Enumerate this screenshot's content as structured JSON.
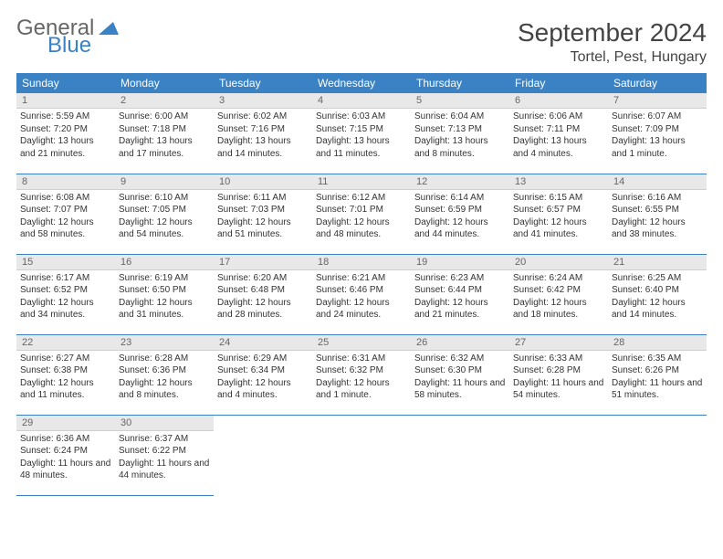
{
  "brand": {
    "line1": "General",
    "line2": "Blue"
  },
  "title": "September 2024",
  "location": "Tortel, Pest, Hungary",
  "colors": {
    "header_bg": "#3b82c4",
    "header_text": "#ffffff",
    "daynum_bg": "#e8e8e8"
  },
  "day_headers": [
    "Sunday",
    "Monday",
    "Tuesday",
    "Wednesday",
    "Thursday",
    "Friday",
    "Saturday"
  ],
  "weeks": [
    [
      {
        "n": "1",
        "sr": "Sunrise: 5:59 AM",
        "ss": "Sunset: 7:20 PM",
        "dl": "Daylight: 13 hours and 21 minutes."
      },
      {
        "n": "2",
        "sr": "Sunrise: 6:00 AM",
        "ss": "Sunset: 7:18 PM",
        "dl": "Daylight: 13 hours and 17 minutes."
      },
      {
        "n": "3",
        "sr": "Sunrise: 6:02 AM",
        "ss": "Sunset: 7:16 PM",
        "dl": "Daylight: 13 hours and 14 minutes."
      },
      {
        "n": "4",
        "sr": "Sunrise: 6:03 AM",
        "ss": "Sunset: 7:15 PM",
        "dl": "Daylight: 13 hours and 11 minutes."
      },
      {
        "n": "5",
        "sr": "Sunrise: 6:04 AM",
        "ss": "Sunset: 7:13 PM",
        "dl": "Daylight: 13 hours and 8 minutes."
      },
      {
        "n": "6",
        "sr": "Sunrise: 6:06 AM",
        "ss": "Sunset: 7:11 PM",
        "dl": "Daylight: 13 hours and 4 minutes."
      },
      {
        "n": "7",
        "sr": "Sunrise: 6:07 AM",
        "ss": "Sunset: 7:09 PM",
        "dl": "Daylight: 13 hours and 1 minute."
      }
    ],
    [
      {
        "n": "8",
        "sr": "Sunrise: 6:08 AM",
        "ss": "Sunset: 7:07 PM",
        "dl": "Daylight: 12 hours and 58 minutes."
      },
      {
        "n": "9",
        "sr": "Sunrise: 6:10 AM",
        "ss": "Sunset: 7:05 PM",
        "dl": "Daylight: 12 hours and 54 minutes."
      },
      {
        "n": "10",
        "sr": "Sunrise: 6:11 AM",
        "ss": "Sunset: 7:03 PM",
        "dl": "Daylight: 12 hours and 51 minutes."
      },
      {
        "n": "11",
        "sr": "Sunrise: 6:12 AM",
        "ss": "Sunset: 7:01 PM",
        "dl": "Daylight: 12 hours and 48 minutes."
      },
      {
        "n": "12",
        "sr": "Sunrise: 6:14 AM",
        "ss": "Sunset: 6:59 PM",
        "dl": "Daylight: 12 hours and 44 minutes."
      },
      {
        "n": "13",
        "sr": "Sunrise: 6:15 AM",
        "ss": "Sunset: 6:57 PM",
        "dl": "Daylight: 12 hours and 41 minutes."
      },
      {
        "n": "14",
        "sr": "Sunrise: 6:16 AM",
        "ss": "Sunset: 6:55 PM",
        "dl": "Daylight: 12 hours and 38 minutes."
      }
    ],
    [
      {
        "n": "15",
        "sr": "Sunrise: 6:17 AM",
        "ss": "Sunset: 6:52 PM",
        "dl": "Daylight: 12 hours and 34 minutes."
      },
      {
        "n": "16",
        "sr": "Sunrise: 6:19 AM",
        "ss": "Sunset: 6:50 PM",
        "dl": "Daylight: 12 hours and 31 minutes."
      },
      {
        "n": "17",
        "sr": "Sunrise: 6:20 AM",
        "ss": "Sunset: 6:48 PM",
        "dl": "Daylight: 12 hours and 28 minutes."
      },
      {
        "n": "18",
        "sr": "Sunrise: 6:21 AM",
        "ss": "Sunset: 6:46 PM",
        "dl": "Daylight: 12 hours and 24 minutes."
      },
      {
        "n": "19",
        "sr": "Sunrise: 6:23 AM",
        "ss": "Sunset: 6:44 PM",
        "dl": "Daylight: 12 hours and 21 minutes."
      },
      {
        "n": "20",
        "sr": "Sunrise: 6:24 AM",
        "ss": "Sunset: 6:42 PM",
        "dl": "Daylight: 12 hours and 18 minutes."
      },
      {
        "n": "21",
        "sr": "Sunrise: 6:25 AM",
        "ss": "Sunset: 6:40 PM",
        "dl": "Daylight: 12 hours and 14 minutes."
      }
    ],
    [
      {
        "n": "22",
        "sr": "Sunrise: 6:27 AM",
        "ss": "Sunset: 6:38 PM",
        "dl": "Daylight: 12 hours and 11 minutes."
      },
      {
        "n": "23",
        "sr": "Sunrise: 6:28 AM",
        "ss": "Sunset: 6:36 PM",
        "dl": "Daylight: 12 hours and 8 minutes."
      },
      {
        "n": "24",
        "sr": "Sunrise: 6:29 AM",
        "ss": "Sunset: 6:34 PM",
        "dl": "Daylight: 12 hours and 4 minutes."
      },
      {
        "n": "25",
        "sr": "Sunrise: 6:31 AM",
        "ss": "Sunset: 6:32 PM",
        "dl": "Daylight: 12 hours and 1 minute."
      },
      {
        "n": "26",
        "sr": "Sunrise: 6:32 AM",
        "ss": "Sunset: 6:30 PM",
        "dl": "Daylight: 11 hours and 58 minutes."
      },
      {
        "n": "27",
        "sr": "Sunrise: 6:33 AM",
        "ss": "Sunset: 6:28 PM",
        "dl": "Daylight: 11 hours and 54 minutes."
      },
      {
        "n": "28",
        "sr": "Sunrise: 6:35 AM",
        "ss": "Sunset: 6:26 PM",
        "dl": "Daylight: 11 hours and 51 minutes."
      }
    ],
    [
      {
        "n": "29",
        "sr": "Sunrise: 6:36 AM",
        "ss": "Sunset: 6:24 PM",
        "dl": "Daylight: 11 hours and 48 minutes."
      },
      {
        "n": "30",
        "sr": "Sunrise: 6:37 AM",
        "ss": "Sunset: 6:22 PM",
        "dl": "Daylight: 11 hours and 44 minutes."
      },
      null,
      null,
      null,
      null,
      null
    ]
  ]
}
